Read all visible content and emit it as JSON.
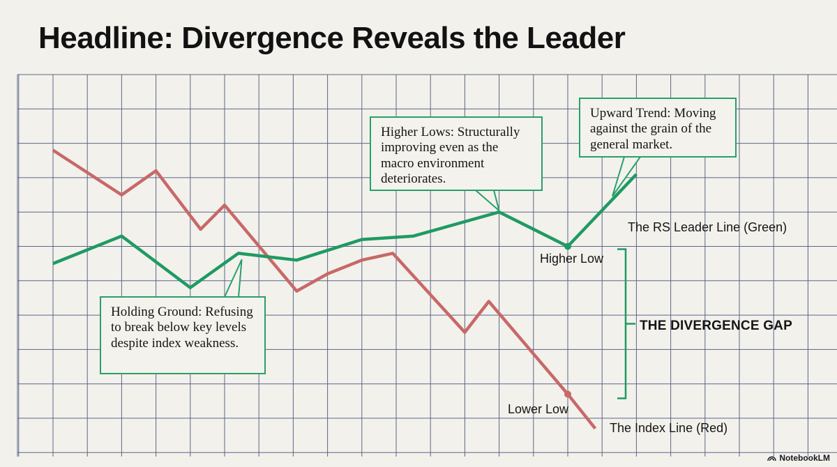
{
  "title": "Headline: Divergence Reveals the Leader",
  "chart_data": {
    "type": "line",
    "x": [
      0,
      1,
      1.5,
      2.3,
      3,
      3.4,
      4,
      4.3,
      5,
      5.5,
      6,
      6.4,
      7,
      7.5,
      8,
      8.5,
      9,
      10,
      10.4,
      11,
      12,
      13,
      14,
      15,
      16,
      17,
      18,
      19,
      20,
      21,
      22,
      23
    ],
    "xlim": [
      -1,
      23.2
    ],
    "ylim": [
      0,
      10
    ],
    "grid": true,
    "series": [
      {
        "name": "The RS Leader Line (Green)",
        "color": "#1f9a63",
        "points": [
          [
            0,
            4.5
          ],
          [
            2,
            5.3
          ],
          [
            4,
            3.8
          ],
          [
            5.4,
            4.8
          ],
          [
            7.1,
            4.6
          ],
          [
            9,
            5.2
          ],
          [
            10.5,
            5.3
          ],
          [
            13,
            6.0
          ],
          [
            15,
            5.0
          ],
          [
            17,
            7.1
          ]
        ]
      },
      {
        "name": "The Index Line (Red)",
        "color": "#c86868",
        "points": [
          [
            0,
            7.8
          ],
          [
            2,
            6.5
          ],
          [
            3,
            7.2
          ],
          [
            4.3,
            5.5
          ],
          [
            5,
            6.2
          ],
          [
            7.1,
            3.7
          ],
          [
            8,
            4.2
          ],
          [
            9,
            4.6
          ],
          [
            9.9,
            4.8
          ],
          [
            12,
            2.5
          ],
          [
            12.7,
            3.4
          ],
          [
            15,
            0.7
          ],
          [
            15.8,
            -0.3
          ]
        ]
      }
    ],
    "annotations": {
      "higher_lows": "Higher Lows: Structurally improving even as the macro environment deteriorates.",
      "upward_trend": "Upward Trend: Moving against the grain of the general market.",
      "holding_ground": "Holding Ground: Refusing to break below key levels despite index weakness.",
      "higher_low": "Higher Low",
      "lower_low": "Lower Low",
      "divergence_gap": "THE DIVERGENCE GAP",
      "rs_leader_label": "The RS Leader Line (Green)",
      "index_label": "The Index Line (Red)"
    }
  },
  "watermark": "NotebookLM",
  "colors": {
    "green": "#1f9a63",
    "red": "#c86868",
    "grid": "#5a6686",
    "background": "#f3f1ec",
    "callout_border": "#27a06a"
  }
}
